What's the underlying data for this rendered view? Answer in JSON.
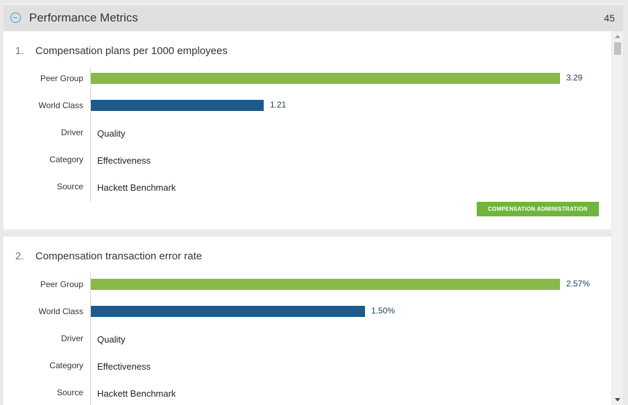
{
  "header": {
    "title": "Performance Metrics",
    "count": "45"
  },
  "metrics": [
    {
      "number": "1.",
      "title": "Compensation plans per 1000 employees",
      "peer_label": "Peer Group",
      "peer_value": "3.29",
      "peer_ratio": 1.0,
      "world_label": "World Class",
      "world_value": "1.21",
      "world_ratio": 0.3678,
      "driver_label": "Driver",
      "driver_value": "Quality",
      "category_label": "Category",
      "category_value": "Effectiveness",
      "source_label": "Source",
      "source_value": "Hackett Benchmark",
      "tag": "COMPENSATION ADMINISTRATION"
    },
    {
      "number": "2.",
      "title": "Compensation transaction error rate",
      "peer_label": "Peer Group",
      "peer_value": "2.57%",
      "peer_ratio": 1.0,
      "world_label": "World Class",
      "world_value": "1.50%",
      "world_ratio": 0.5837,
      "driver_label": "Driver",
      "driver_value": "Quality",
      "category_label": "Category",
      "category_value": "Effectiveness",
      "source_label": "Source",
      "source_value": "Hackett Benchmark"
    }
  ],
  "colors": {
    "peer": "#8ab849",
    "world": "#1b5a8a",
    "accent": "#3d9ad1",
    "tag": "#6fb53e"
  }
}
